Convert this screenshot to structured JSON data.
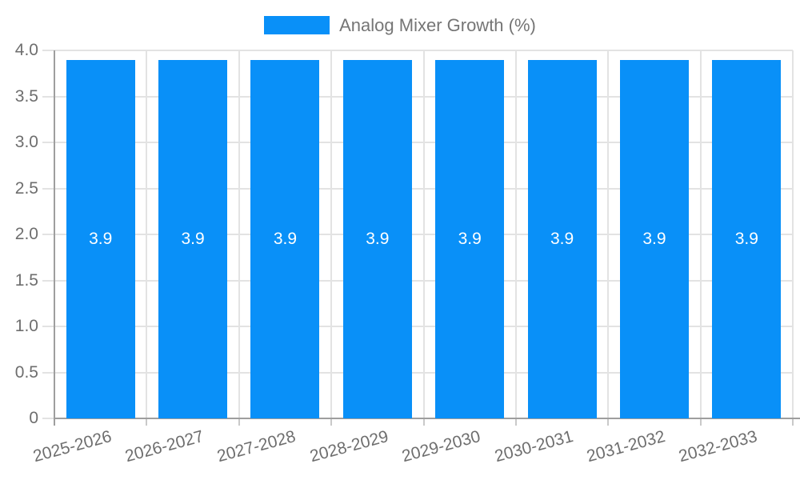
{
  "chart_data": {
    "type": "bar",
    "title": "",
    "categories": [
      "2025-2026",
      "2026-2027",
      "2027-2028",
      "2028-2029",
      "2029-2030",
      "2030-2031",
      "2031-2032",
      "2032-2033"
    ],
    "series": [
      {
        "name": "Analog Mixer Growth (%)",
        "values": [
          3.9,
          3.9,
          3.9,
          3.9,
          3.9,
          3.9,
          3.9,
          3.9
        ]
      }
    ],
    "value_labels": [
      "3.9",
      "3.9",
      "3.9",
      "3.9",
      "3.9",
      "3.9",
      "3.9",
      "3.9"
    ],
    "xlabel": "",
    "ylabel": "",
    "ylim": [
      0,
      4.0
    ],
    "ytick_values": [
      0,
      0.5,
      1.0,
      1.5,
      2.0,
      2.5,
      3.0,
      3.5,
      4.0
    ],
    "ytick_labels": [
      "0",
      "0.5",
      "1.0",
      "1.5",
      "2.0",
      "2.5",
      "3.0",
      "3.5",
      "4.0"
    ],
    "grid": true,
    "legend_position": "top-center",
    "x_label_rotation_deg": -15
  },
  "legend": {
    "label": "Analog Mixer Growth (%)"
  },
  "colors": {
    "bar": "#0990F8",
    "grid": "#E3E3E3",
    "axis": "#9E9E9E",
    "tick": "#C9C9C9",
    "axis_label": "#6E6E6E",
    "legend_text": "#757575",
    "bar_value_label": "#FFFFFF",
    "background": "#FFFFFF"
  }
}
